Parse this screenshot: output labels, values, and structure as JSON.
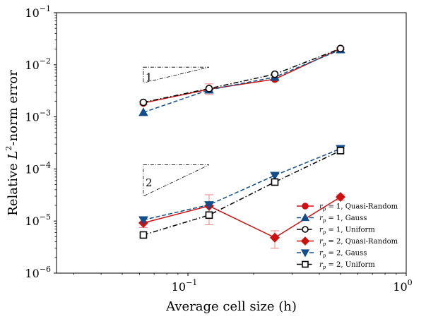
{
  "chart_data": {
    "type": "line",
    "xscale": "log",
    "yscale": "log",
    "xlim": [
      0.025,
      1.0
    ],
    "ylim": [
      1e-06,
      0.1
    ],
    "xlabel": "Average cell size (h)",
    "ylabel_prefix": "Relative ",
    "ylabel_math": "L",
    "ylabel_sup": "2",
    "ylabel_suffix": "-norm error",
    "x_ticks": [
      {
        "value": 0.1,
        "base": "10",
        "exp": "−1"
      },
      {
        "value": 1.0,
        "base": "10",
        "exp": "0"
      }
    ],
    "y_ticks": [
      {
        "value": 0.1,
        "base": "10",
        "exp": "−1"
      },
      {
        "value": 0.01,
        "base": "10",
        "exp": "−2"
      },
      {
        "value": 0.001,
        "base": "10",
        "exp": "−3"
      },
      {
        "value": 0.0001,
        "base": "10",
        "exp": "−4"
      },
      {
        "value": 1e-05,
        "base": "10",
        "exp": "−5"
      },
      {
        "value": 1e-06,
        "base": "10",
        "exp": "−6"
      }
    ],
    "grid": false,
    "legend_position": "lower-right",
    "series": [
      {
        "legend_r": "r",
        "legend_sub": "p",
        "legend_text": " = 1, Quasi-Random",
        "color": "#cc1111",
        "linestyle": "solid",
        "marker": "circle",
        "filled": true,
        "x": [
          0.0625,
          0.125,
          0.25,
          0.5
        ],
        "y": [
          0.00185,
          0.0034,
          0.0053,
          0.0205
        ],
        "err_low": [
          0.0017,
          0.0027,
          0.0049,
          0.0195
        ],
        "err_high": [
          0.002,
          0.0043,
          0.0058,
          0.0215
        ]
      },
      {
        "legend_r": "r",
        "legend_sub": "p",
        "legend_text": " = 1, Gauss",
        "color": "#124e8a",
        "linestyle": "dashed",
        "marker": "triangle-up",
        "filled": true,
        "x": [
          0.0625,
          0.125,
          0.25,
          0.5
        ],
        "y": [
          0.00122,
          0.0033,
          0.0058,
          0.0195
        ]
      },
      {
        "legend_r": "r",
        "legend_sub": "p",
        "legend_text": " = 1, Uniform",
        "color": "#000000",
        "linestyle": "dashdot",
        "marker": "circle",
        "filled": false,
        "x": [
          0.0625,
          0.125,
          0.25,
          0.5
        ],
        "y": [
          0.0019,
          0.0035,
          0.0066,
          0.0205
        ]
      },
      {
        "legend_r": "r",
        "legend_sub": "p",
        "legend_text": " = 2, Quasi-Random",
        "color": "#cc1111",
        "linestyle": "solid",
        "marker": "diamond",
        "filled": true,
        "x": [
          0.0625,
          0.125,
          0.25,
          0.5
        ],
        "y": [
          9.2e-06,
          1.95e-05,
          4.8e-06,
          2.9e-05
        ],
        "err_low": [
          7.5e-06,
          8.5e-06,
          3e-06,
          2.5e-05
        ],
        "err_high": [
          1.15e-05,
          3.2e-05,
          6.5e-06,
          3.2e-05
        ]
      },
      {
        "legend_r": "r",
        "legend_sub": "p",
        "legend_text": " = 2, Gauss",
        "color": "#124e8a",
        "linestyle": "dashed",
        "marker": "triangle-down",
        "filled": true,
        "x": [
          0.0625,
          0.125,
          0.25,
          0.5
        ],
        "y": [
          1.05e-05,
          2.05e-05,
          7.5e-05,
          0.000245
        ]
      },
      {
        "legend_r": "r",
        "legend_sub": "p",
        "legend_text": " = 2, Uniform",
        "color": "#000000",
        "linestyle": "dashdot",
        "marker": "square",
        "filled": false,
        "x": [
          0.0625,
          0.125,
          0.25,
          0.5
        ],
        "y": [
          5.4e-06,
          1.3e-05,
          5.6e-05,
          0.000225
        ]
      }
    ],
    "annotations": [
      {
        "label": "1",
        "x0": 0.0625,
        "x1": 0.125,
        "y_base": 0.009
      },
      {
        "label": "2",
        "x0": 0.0625,
        "x1": 0.125,
        "y_base": 0.00012
      }
    ]
  }
}
